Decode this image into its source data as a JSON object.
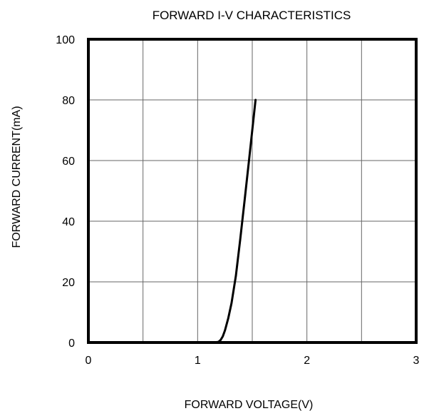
{
  "chart_data": {
    "type": "line",
    "title": "FORWARD I-V CHARACTERISTICS",
    "xlabel": "FORWARD VOLTAGE(V)",
    "ylabel": "FORWARD CURRENT(mA)",
    "xlim": [
      0,
      3
    ],
    "ylim": [
      0,
      100
    ],
    "xticks": [
      0,
      0.5,
      1,
      1.5,
      2,
      2.5,
      3
    ],
    "xtick_labels": [
      "0",
      "",
      "1",
      "",
      "2",
      "",
      "3"
    ],
    "yticks": [
      0,
      20,
      40,
      60,
      80,
      100
    ],
    "ytick_labels": [
      "0",
      "20",
      "40",
      "60",
      "80",
      "100"
    ],
    "grid": true,
    "legend": "none",
    "line_color": "#000000",
    "series": [
      {
        "x": [
          0,
          0.5,
          1.0,
          1.15,
          1.19,
          1.21,
          1.23,
          1.25,
          1.28,
          1.31,
          1.35,
          1.39,
          1.43,
          1.47,
          1.5,
          1.53
        ],
        "y": [
          0,
          0,
          0,
          0,
          0.2,
          0.8,
          2,
          4,
          8,
          13,
          22,
          34,
          47,
          60,
          70,
          80
        ]
      }
    ]
  }
}
